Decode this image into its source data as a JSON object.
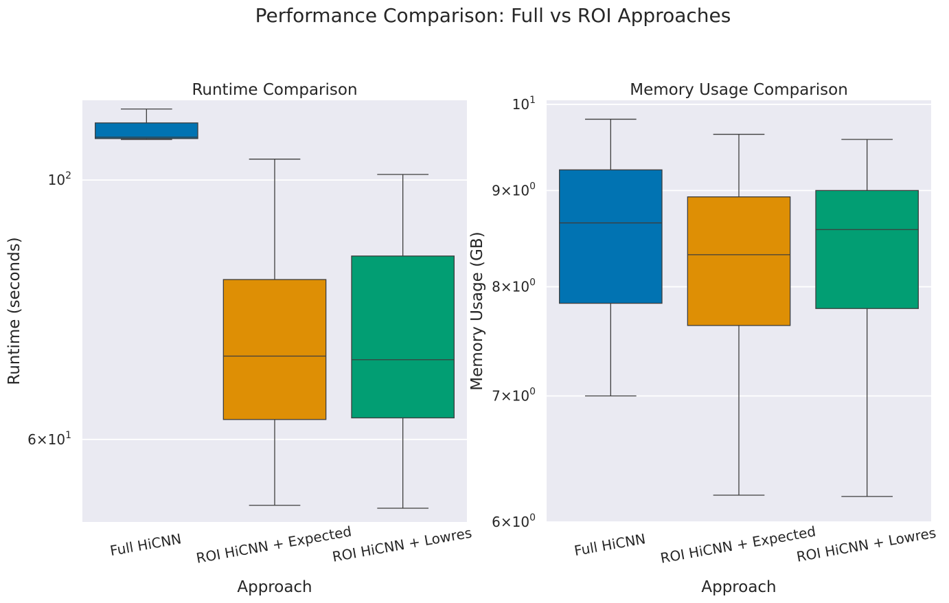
{
  "figure": {
    "suptitle": "Performance Comparison: Full vs ROI Approaches"
  },
  "chart_data": [
    {
      "type": "box",
      "title": "Runtime Comparison",
      "xlabel": "Approach",
      "ylabel": "Runtime (seconds)",
      "yscale": "log",
      "ylim": [
        51,
        117
      ],
      "grid": true,
      "categories": [
        "Full HiCNN",
        "ROI HiCNN + Expected",
        "ROI HiCNN + Lowres"
      ],
      "colors": [
        "#0173b2",
        "#de8f05",
        "#029e73"
      ],
      "yticks": [
        {
          "value": 100,
          "base": "10",
          "exp": "2",
          "mant": ""
        },
        {
          "value": 60,
          "base": "10",
          "exp": "1",
          "mant": "6"
        }
      ],
      "boxes": [
        {
          "whisker_low": 108.3,
          "q1": 108.5,
          "median": 108.8,
          "q3": 111.9,
          "whisker_high": 115.0
        },
        {
          "whisker_low": 52.7,
          "q1": 62.4,
          "median": 70.7,
          "q3": 82.2,
          "whisker_high": 104.2
        },
        {
          "whisker_low": 52.4,
          "q1": 62.6,
          "median": 70.2,
          "q3": 86.1,
          "whisker_high": 101.1
        }
      ]
    },
    {
      "type": "box",
      "title": "Memory Usage Comparison",
      "xlabel": "Approach",
      "ylabel": "Memory Usage (GB)",
      "yscale": "log",
      "ylim": [
        6.0,
        10.05
      ],
      "grid": true,
      "categories": [
        "Full HiCNN",
        "ROI HiCNN + Expected",
        "ROI HiCNN + Lowres"
      ],
      "colors": [
        "#0173b2",
        "#de8f05",
        "#029e73"
      ],
      "yticks": [
        {
          "value": 10,
          "base": "10",
          "exp": "1",
          "mant": ""
        },
        {
          "value": 9,
          "base": "10",
          "exp": "0",
          "mant": "9"
        },
        {
          "value": 8,
          "base": "10",
          "exp": "0",
          "mant": "8"
        },
        {
          "value": 7,
          "base": "10",
          "exp": "0",
          "mant": "7"
        },
        {
          "value": 6,
          "base": "10",
          "exp": "0",
          "mant": "6"
        }
      ],
      "boxes": [
        {
          "whisker_low": 7.0,
          "q1": 7.84,
          "median": 8.65,
          "q3": 9.23,
          "whisker_high": 9.82
        },
        {
          "whisker_low": 6.2,
          "q1": 7.63,
          "median": 8.32,
          "q3": 8.93,
          "whisker_high": 9.64
        },
        {
          "whisker_low": 6.19,
          "q1": 7.79,
          "median": 8.58,
          "q3": 9.0,
          "whisker_high": 9.58
        }
      ]
    }
  ]
}
